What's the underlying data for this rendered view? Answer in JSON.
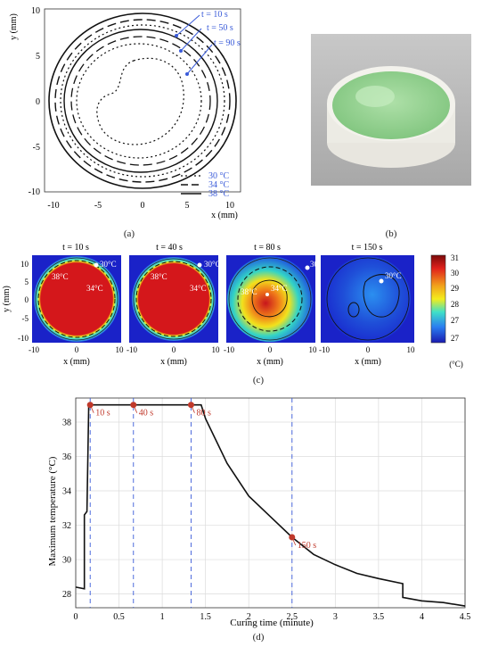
{
  "panel_labels": {
    "a": "(a)",
    "b": "(b)",
    "c": "(c)",
    "d": "(d)"
  },
  "panel_a": {
    "xlabel": "x (mm)",
    "ylabel": "y (mm)",
    "xticks": [
      "-10",
      "-5",
      "0",
      "5",
      "10"
    ],
    "yticks": [
      "10",
      "5",
      "0",
      "-5",
      "-10"
    ],
    "time_annotations": [
      "t = 10 s",
      "t = 50 s",
      "t = 90 s"
    ],
    "legend": [
      "30 °C",
      "34 °C",
      "38 °C"
    ]
  },
  "panel_c": {
    "titles": [
      "t = 10 s",
      "t = 40 s",
      "t = 80 s",
      "t = 150 s"
    ],
    "xlabel": "x (mm)",
    "ylabel": "y (mm)",
    "xticks": [
      "-10",
      "0",
      "10"
    ],
    "yticks": [
      "10",
      "5",
      "0",
      "-5",
      "-10"
    ],
    "contour_labels": {
      "c30": "30°C",
      "c34": "34°C",
      "c38": "38°C"
    },
    "colorbar_ticks": [
      "31",
      "30",
      "29",
      "28",
      "27",
      "27"
    ],
    "colorbar_unit": "(°C)"
  },
  "chart_data": {
    "type": "line",
    "xlabel": "Curing time (minute)",
    "ylabel": "Maximum temperature (°C)",
    "xlim": [
      0,
      4.5
    ],
    "ylim": [
      27.2,
      39.4
    ],
    "xticks": [
      "0",
      "0.5",
      "1",
      "1.5",
      "2",
      "2.5",
      "3",
      "3.5",
      "4",
      "4.5"
    ],
    "yticks": [
      "38",
      "36",
      "34",
      "32",
      "30",
      "28"
    ],
    "grid": true,
    "x": [
      0,
      0.1,
      0.1,
      0.13,
      0.15,
      1.45,
      1.5,
      1.75,
      2.0,
      2.25,
      2.5,
      2.75,
      3.0,
      3.25,
      3.5,
      3.78,
      3.78,
      4.0,
      4.25,
      4.5
    ],
    "y": [
      28.4,
      28.3,
      32.6,
      32.8,
      39.0,
      39.0,
      38.2,
      35.6,
      33.7,
      32.5,
      31.3,
      30.3,
      29.7,
      29.2,
      28.9,
      28.6,
      27.8,
      27.6,
      27.5,
      27.3
    ],
    "markers": [
      {
        "x": 0.167,
        "y": 39.0,
        "label": "10 s"
      },
      {
        "x": 0.667,
        "y": 39.0,
        "label": "40 s"
      },
      {
        "x": 1.333,
        "y": 39.0,
        "label": "80 s"
      },
      {
        "x": 2.5,
        "y": 31.3,
        "label": "150 s"
      }
    ],
    "colors": {
      "line": "#111111",
      "marker": "#c0392b",
      "vline": "#3a5bd9"
    }
  }
}
